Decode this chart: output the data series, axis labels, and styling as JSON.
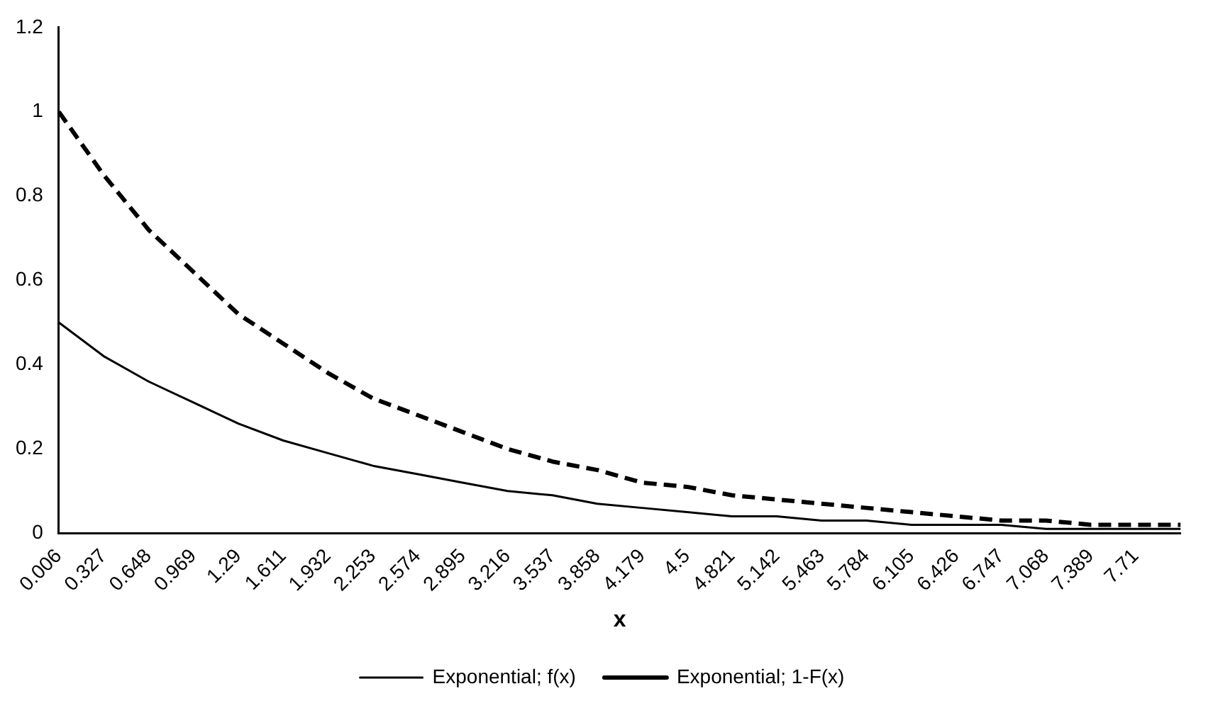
{
  "chart_data": {
    "type": "line",
    "xlabel": "x",
    "categories": [
      "0.006",
      "0.327",
      "0.648",
      "0.969",
      "1.29",
      "1.611",
      "1.932",
      "2.253",
      "2.574",
      "2.895",
      "3.216",
      "3.537",
      "3.858",
      "4.179",
      "4.5",
      "4.821",
      "5.142",
      "5.463",
      "5.784",
      "6.105",
      "6.426",
      "6.747",
      "7.068",
      "7.389",
      "7.71",
      null
    ],
    "series": [
      {
        "name": "Exponential; f(x)",
        "color": "#000000",
        "line_style": "solid",
        "values": [
          0.5,
          0.42,
          0.36,
          0.31,
          0.26,
          0.22,
          0.19,
          0.16,
          0.14,
          0.12,
          0.1,
          0.09,
          0.07,
          0.06,
          0.05,
          0.04,
          0.04,
          0.03,
          0.03,
          0.02,
          0.02,
          0.02,
          0.01,
          0.01,
          0.01,
          0.01
        ]
      },
      {
        "name": "Exponential; 1-F(x)",
        "color": "#000000",
        "line_style": "dashed",
        "values": [
          1.0,
          0.85,
          0.72,
          0.62,
          0.52,
          0.45,
          0.38,
          0.32,
          0.28,
          0.24,
          0.2,
          0.17,
          0.15,
          0.12,
          0.11,
          0.09,
          0.08,
          0.07,
          0.06,
          0.05,
          0.04,
          0.03,
          0.03,
          0.02,
          0.02,
          0.02
        ]
      }
    ],
    "ylim": [
      0,
      1.2
    ],
    "yticks": [
      0,
      0.2,
      0.4,
      0.6,
      0.8,
      1,
      1.2
    ],
    "grid": false,
    "legend": "bottom",
    "marker": "none"
  }
}
